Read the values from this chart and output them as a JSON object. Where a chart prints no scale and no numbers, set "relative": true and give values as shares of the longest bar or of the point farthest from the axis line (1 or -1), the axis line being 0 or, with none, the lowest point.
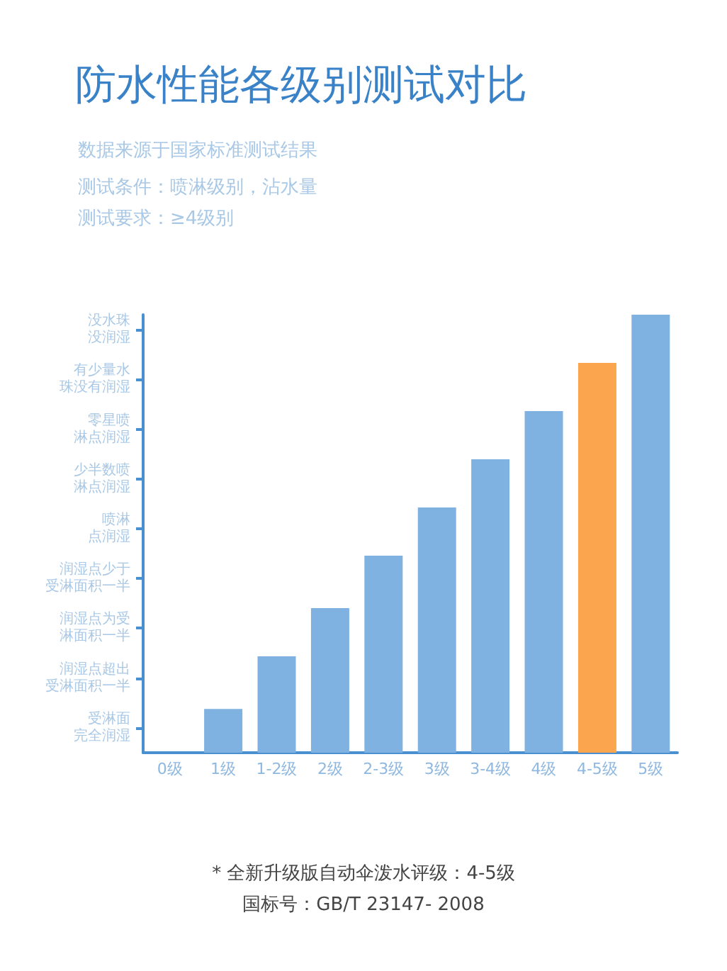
{
  "chart_data": {
    "type": "bar",
    "title": "防水性能各级别测试对比",
    "subtitle": "数据来源于国家标准测试结果",
    "relative": true,
    "annotations": [
      "测试条件：喷淋级别，沾水量",
      "测试要求：≥4级别",
      "* 全新升级版自动伞泼水评级：4-5级",
      "国标号：GB/T 23147- 2008",
      "受淋面完全润湿",
      "润湿点超出受淋面积一半",
      "润湿点为受淋面积一半",
      "润湿点少于受淋面积一半",
      "喷淋点润湿",
      "少半数喷淋点润湿",
      "零星喷淋点润湿",
      "有少量水珠没有润湿",
      "没水珠没润湿"
    ],
    "categories": [
      "0级",
      "1级",
      "1-2级",
      "2级",
      "2-3级",
      "3级",
      "3-4级",
      "4级",
      "4-5级",
      "5级"
    ],
    "values": [
      null,
      0.1,
      0.22,
      0.33,
      0.45,
      0.56,
      0.67,
      0.78,
      0.89,
      1
    ],
    "colors": [
      "#7fb2e0",
      "#7fb2e0",
      "#7fb2e0",
      "#7fb2e0",
      "#7fb2e0",
      "#7fb2e0",
      "#7fb2e0",
      "#7fb2e0",
      "#fba54f",
      "#7fb2e0"
    ],
    "grid": false
  }
}
